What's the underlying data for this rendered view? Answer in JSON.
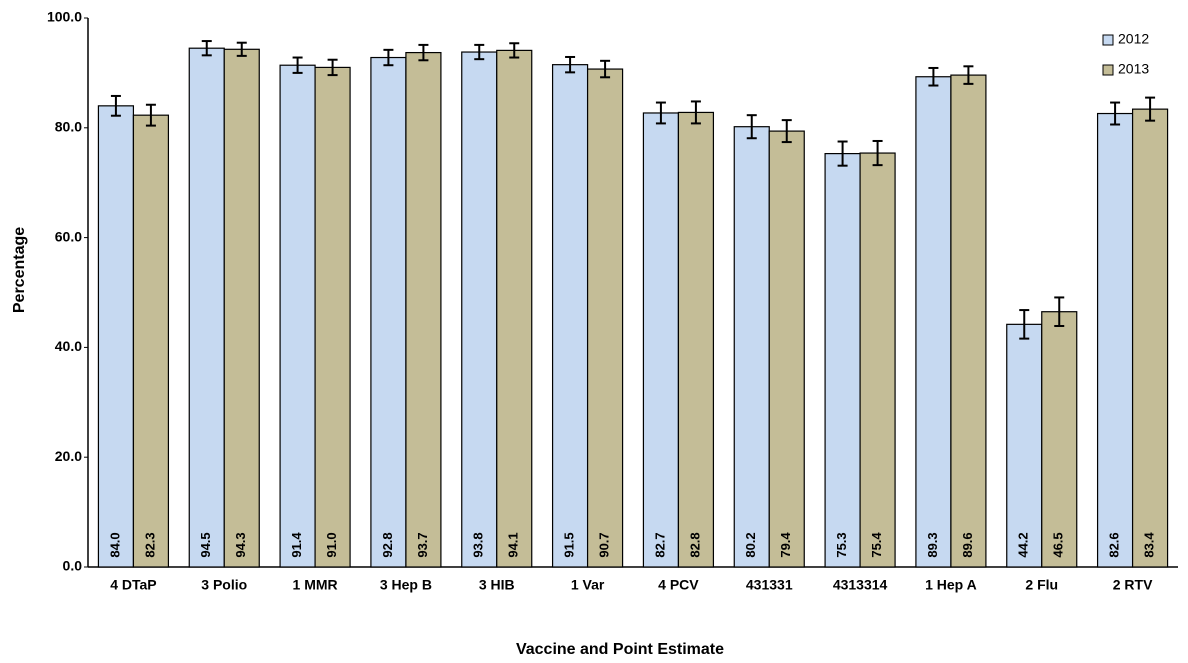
{
  "chart_data": {
    "type": "bar",
    "x_label": "Vaccine and Point Estimate",
    "y_label": "Percentage",
    "categories": [
      "4 DTaP",
      "3 Polio",
      "1 MMR",
      "3 Hep  B",
      "3 HIB",
      "1 Var",
      "4 PCV",
      "431331",
      "4313314",
      "1 Hep  A",
      "2 Flu",
      "2 RTV"
    ],
    "series": [
      {
        "name": "2012",
        "color": "#c6d9f1",
        "values": [
          84.0,
          94.5,
          91.4,
          92.8,
          93.8,
          91.5,
          82.7,
          80.2,
          75.3,
          89.3,
          44.2,
          82.6
        ],
        "value_labels": [
          "84.0",
          "94.5",
          "91.4",
          "92.8",
          "93.8",
          "91.5",
          "82.7",
          "80.2",
          "75.3",
          "89.3",
          "44.2",
          "82.6"
        ],
        "errors": [
          1.8,
          1.3,
          1.4,
          1.4,
          1.3,
          1.4,
          1.9,
          2.1,
          2.2,
          1.6,
          2.6,
          2.0
        ]
      },
      {
        "name": "2013",
        "color": "#c4bd97",
        "values": [
          82.3,
          94.3,
          91.0,
          93.7,
          94.1,
          90.7,
          82.8,
          79.4,
          75.4,
          89.6,
          46.5,
          83.4
        ],
        "value_labels": [
          "82.3",
          "94.3",
          "91.0",
          "93.7",
          "94.1",
          "90.7",
          "82.8",
          "79.4",
          "75.4",
          "89.6",
          "46.5",
          "83.4"
        ],
        "errors": [
          1.9,
          1.2,
          1.4,
          1.4,
          1.3,
          1.5,
          2.0,
          2.0,
          2.2,
          1.6,
          2.6,
          2.1
        ]
      }
    ],
    "ylim": [
      0,
      100
    ],
    "yticks": [
      {
        "value": 0,
        "label": "0.0"
      },
      {
        "value": 20,
        "label": "20.0"
      },
      {
        "value": 40,
        "label": "40.0"
      },
      {
        "value": 60,
        "label": "60.0"
      },
      {
        "value": 80,
        "label": "80.0"
      },
      {
        "value": 100,
        "label": "100.0"
      }
    ],
    "legend": "upper right"
  }
}
